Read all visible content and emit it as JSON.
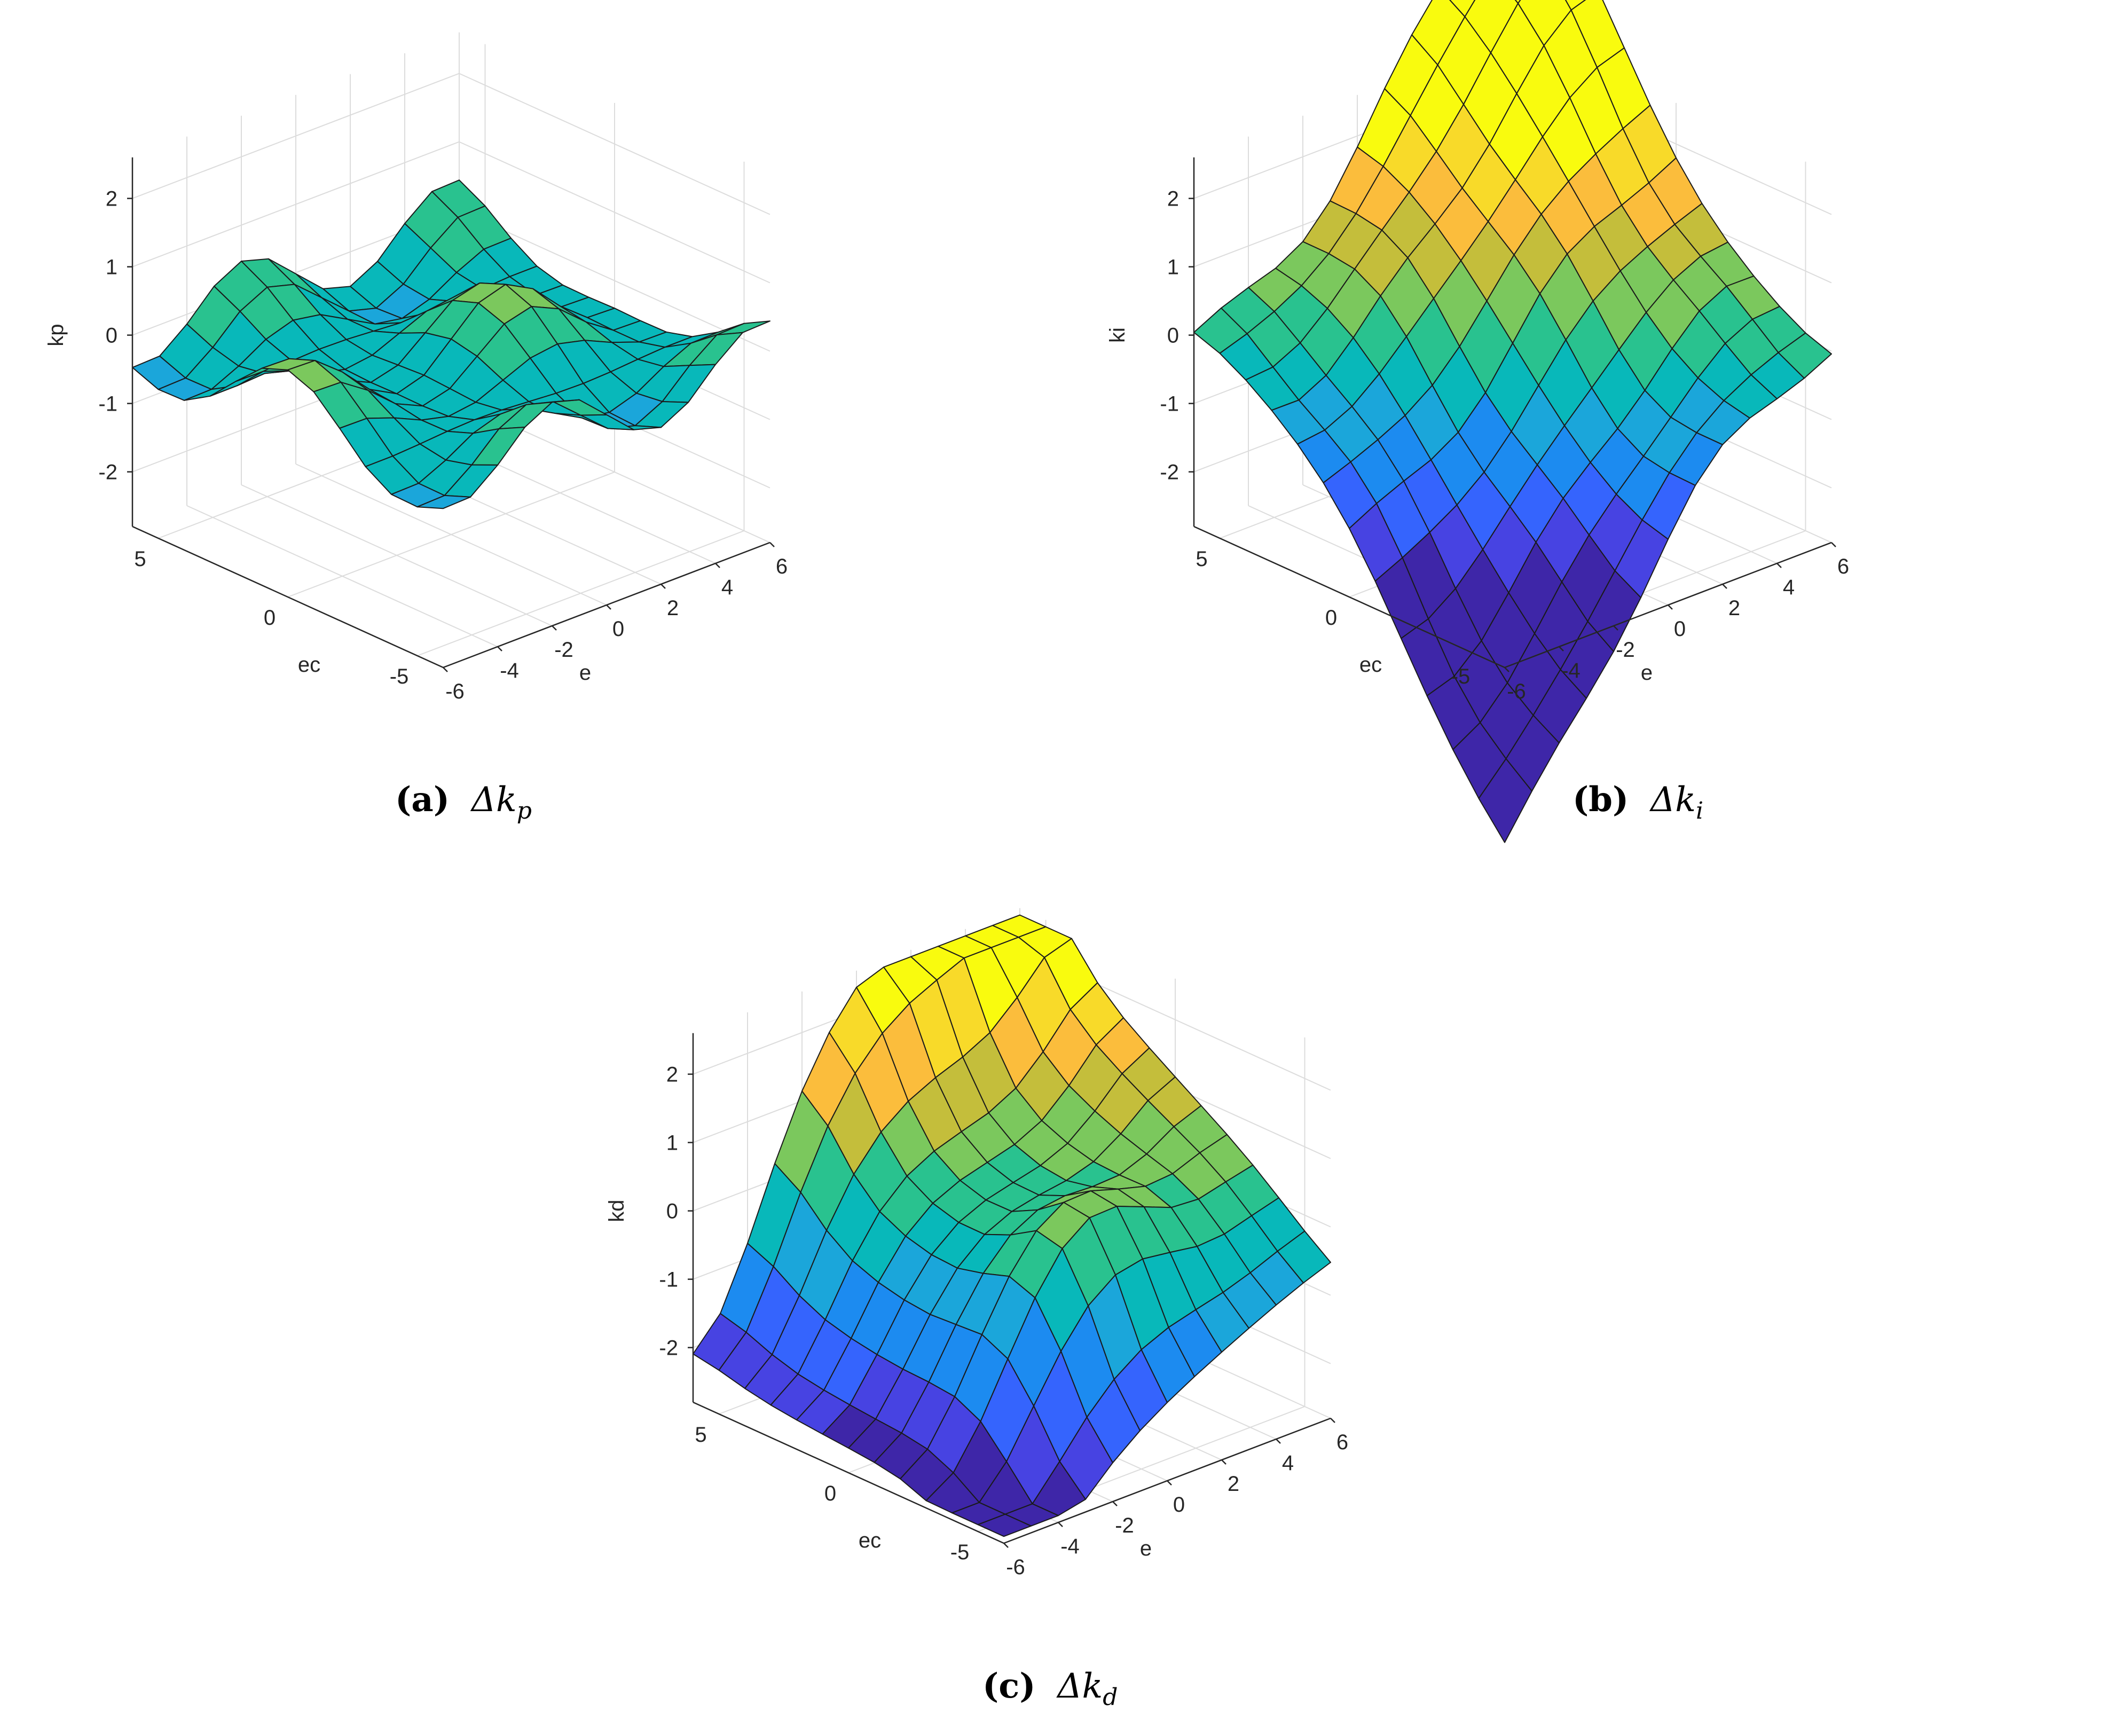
{
  "chart_data": [
    {
      "type": "surface",
      "caption_label": "(a)",
      "caption_symbol": "Δk",
      "caption_subscript": "p",
      "xlabel": "e",
      "ylabel": "ec",
      "zlabel": "kp",
      "x_ticks": [
        "-6",
        "-4",
        "-2",
        "0",
        "2",
        "4",
        "6"
      ],
      "y_ticks": [
        "-5",
        "0",
        "5"
      ],
      "z_ticks": [
        "-2",
        "-1",
        "0",
        "1",
        "2"
      ],
      "xlim": [
        -6,
        6
      ],
      "ylim": [
        -6,
        6
      ],
      "zlim": [
        -2.8,
        2.6
      ],
      "surface": "kp"
    },
    {
      "type": "surface",
      "caption_label": "(b)",
      "caption_symbol": "Δk",
      "caption_subscript": "i",
      "xlabel": "e",
      "ylabel": "ec",
      "zlabel": "ki",
      "x_ticks": [
        "-6",
        "-4",
        "-2",
        "0",
        "2",
        "4",
        "6"
      ],
      "y_ticks": [
        "-5",
        "0",
        "5"
      ],
      "z_ticks": [
        "-2",
        "-1",
        "0",
        "1",
        "2"
      ],
      "xlim": [
        -6,
        6
      ],
      "ylim": [
        -6,
        6
      ],
      "zlim": [
        -2.8,
        2.6
      ],
      "surface": "ki"
    },
    {
      "type": "surface",
      "caption_label": "(c)",
      "caption_symbol": "Δk",
      "caption_subscript": "d",
      "xlabel": "e",
      "ylabel": "ec",
      "zlabel": "kd",
      "x_ticks": [
        "-6",
        "-4",
        "-2",
        "0",
        "2",
        "4",
        "6"
      ],
      "y_ticks": [
        "-5",
        "0",
        "5"
      ],
      "z_ticks": [
        "-2",
        "-1",
        "0",
        "1",
        "2"
      ],
      "xlim": [
        -6,
        6
      ],
      "ylim": [
        -6,
        6
      ],
      "zlim": [
        -2.8,
        2.6
      ],
      "surface": "kd"
    }
  ],
  "colormap": [
    "#3e26a8",
    "#4743e2",
    "#3564fd",
    "#1c8bf0",
    "#1ba6da",
    "#08b8ba",
    "#29c28f",
    "#7bc85d",
    "#c4be3b",
    "#fbbd3c",
    "#f8da29",
    "#f9fb0e"
  ]
}
